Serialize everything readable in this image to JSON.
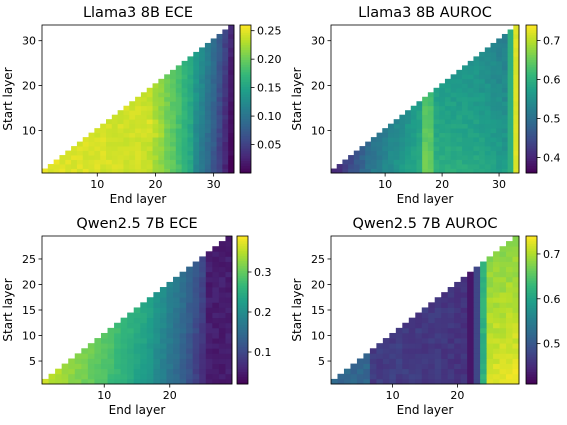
{
  "chart_data": [
    {
      "type": "heatmap",
      "title": "Llama3 8B ECE",
      "xlabel": "End layer",
      "ylabel": "Start layer",
      "n": 33,
      "xticks": [
        10,
        20,
        30
      ],
      "yticks": [
        10,
        20,
        30
      ],
      "colorbar": {
        "min": 0.0,
        "max": 0.26,
        "ticks": [
          "0.05",
          "0.10",
          "0.15",
          "0.20",
          "0.25"
        ],
        "tick_values": [
          0.05,
          0.1,
          0.15,
          0.2,
          0.25
        ]
      },
      "colormap": "viridis",
      "pattern": "ece_llama",
      "value_profile": [
        [
          0,
          0.25
        ],
        [
          0.55,
          0.24
        ],
        [
          0.7,
          0.19
        ],
        [
          0.82,
          0.14
        ],
        [
          0.9,
          0.1
        ],
        [
          0.96,
          0.06
        ],
        [
          1,
          0.03
        ]
      ]
    },
    {
      "type": "heatmap",
      "title": "Llama3 8B AUROC",
      "xlabel": "End layer",
      "ylabel": "Start layer",
      "n": 33,
      "xticks": [
        10,
        20,
        30
      ],
      "yticks": [
        10,
        20,
        30
      ],
      "colorbar": {
        "min": 0.36,
        "max": 0.74,
        "ticks": [
          "0.4",
          "0.5",
          "0.6",
          "0.7"
        ],
        "tick_values": [
          0.4,
          0.5,
          0.6,
          0.7
        ]
      },
      "colormap": "viridis",
      "pattern": "auroc_llama",
      "value_profile": [
        [
          0,
          0.4
        ],
        [
          0.2,
          0.5
        ],
        [
          0.5,
          0.58
        ],
        [
          0.8,
          0.55
        ],
        [
          0.95,
          0.52
        ],
        [
          1,
          0.73
        ]
      ]
    },
    {
      "type": "heatmap",
      "title": "Qwen2.5 7B ECE",
      "xlabel": "End layer",
      "ylabel": "Start layer",
      "n": 29,
      "xticks": [
        10,
        20
      ],
      "yticks": [
        5,
        10,
        15,
        20,
        25
      ],
      "colorbar": {
        "min": 0.02,
        "max": 0.39,
        "ticks": [
          "0.1",
          "0.2",
          "0.3"
        ],
        "tick_values": [
          0.1,
          0.2,
          0.3
        ]
      },
      "colormap": "viridis",
      "pattern": "ece_qwen",
      "value_profile": [
        [
          0,
          0.36
        ],
        [
          0.3,
          0.3
        ],
        [
          0.55,
          0.24
        ],
        [
          0.75,
          0.16
        ],
        [
          0.9,
          0.08
        ],
        [
          1,
          0.04
        ]
      ]
    },
    {
      "type": "heatmap",
      "title": "Qwen2.5 7B AUROC",
      "xlabel": "End layer",
      "ylabel": "Start layer",
      "n": 29,
      "xticks": [
        10,
        20
      ],
      "yticks": [
        5,
        10,
        15,
        20,
        25
      ],
      "colorbar": {
        "min": 0.41,
        "max": 0.74,
        "ticks": [
          "0.5",
          "0.6",
          "0.7"
        ],
        "tick_values": [
          0.5,
          0.6,
          0.7
        ]
      },
      "colormap": "viridis",
      "pattern": "auroc_qwen",
      "value_profile": [
        [
          0,
          0.46
        ],
        [
          0.3,
          0.47
        ],
        [
          0.7,
          0.46
        ],
        [
          0.8,
          0.45
        ],
        [
          0.88,
          0.68
        ],
        [
          1,
          0.72
        ]
      ]
    }
  ]
}
